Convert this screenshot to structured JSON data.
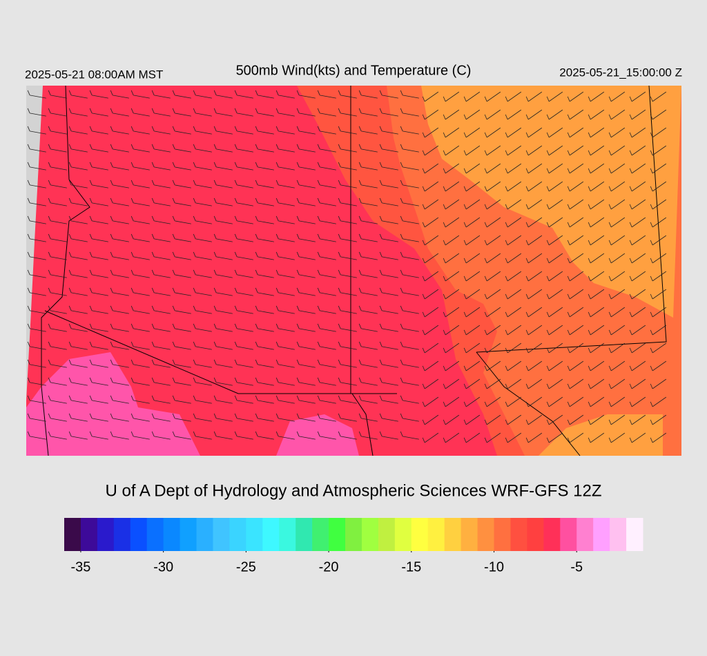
{
  "header": {
    "left": "2025-05-21 08:00AM MST",
    "title": "500mb Wind(kts) and Temperature (C)",
    "right": "2025-05-21_15:00:00 Z"
  },
  "credit": "U of A Dept of Hydrology and Atmospheric Sciences WRF-GFS 12Z",
  "colorbar": {
    "clim": [
      -36,
      -1
    ],
    "ticks": [
      -35,
      -30,
      -25,
      -20,
      -15,
      -10,
      -5
    ],
    "colors": [
      "#3a0a4a",
      "#3d0a99",
      "#2a1acc",
      "#1a30e6",
      "#0a50ff",
      "#0a70ff",
      "#0a88ff",
      "#10a0ff",
      "#2ab0ff",
      "#40c4ff",
      "#3ad4ff",
      "#3ae4ff",
      "#3ef8ff",
      "#3af8e0",
      "#30e8b0",
      "#40f070",
      "#40ff40",
      "#80f040",
      "#a0ff40",
      "#c0f040",
      "#e0ff40",
      "#ffff40",
      "#fff040",
      "#ffd040",
      "#ffb040",
      "#ff9040",
      "#ff7040",
      "#ff5040",
      "#ff4040",
      "#ff3058",
      "#ff50a0",
      "#ff80d0",
      "#ffa0ff",
      "#ffc0f0",
      "#fff0ff"
    ]
  }
}
